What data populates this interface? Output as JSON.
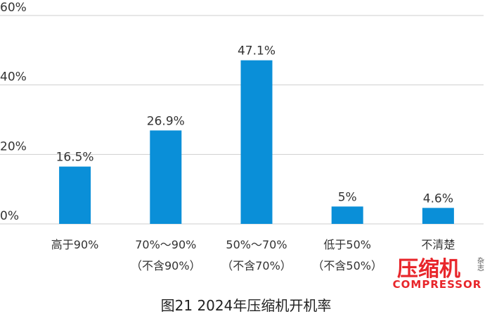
{
  "chart_data": {
    "type": "bar",
    "title": "图21 2024年压缩机开机率",
    "categories": [
      "高于90%",
      "70%～90%\n（不含90%）",
      "50%～70%\n（不含70%）",
      "低于50%\n（不含50%）",
      "不清楚"
    ],
    "values": [
      16.5,
      26.9,
      47.1,
      5,
      4.6
    ],
    "value_labels": [
      "16.5%",
      "26.9%",
      "47.1%",
      "5%",
      "4.6%"
    ],
    "color": "#0a8fd8",
    "ylim": [
      0,
      60
    ],
    "yticks": [
      {
        "value": 0,
        "label": "0%"
      },
      {
        "value": 20,
        "label": "20%"
      },
      {
        "value": 40,
        "label": "40%"
      },
      {
        "value": 60,
        "label": "60%"
      }
    ],
    "grid": true
  },
  "logo": {
    "main": "压缩机",
    "side": "杂志",
    "sub": "COMPRESSOR"
  }
}
